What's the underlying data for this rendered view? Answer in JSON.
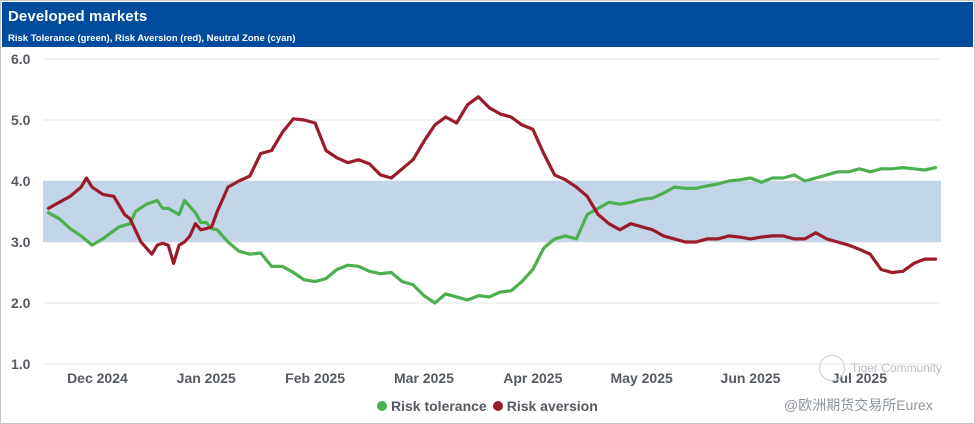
{
  "header": {
    "title": "Developed markets",
    "subtitle": "Risk Tolerance (green), Risk Aversion (red), Neutral Zone (cyan)"
  },
  "colors": {
    "header_bg": "#004b9b",
    "risk_tolerance": "#4caf50",
    "risk_aversion": "#9b1b2a",
    "neutral_zone": "#c2d6e8"
  },
  "watermark": {
    "community": "Tiger Community",
    "source": "@欧洲期货交易所Eurex"
  },
  "chart_data": {
    "type": "line",
    "title": "Developed markets",
    "subtitle": "Risk Tolerance (green), Risk Aversion (red), Neutral Zone (cyan)",
    "xlabel": "",
    "ylabel": "",
    "ylim": [
      1.0,
      6.0
    ],
    "y_ticks": [
      "1.0",
      "2.0",
      "3.0",
      "4.0",
      "5.0",
      "6.0"
    ],
    "x_range": [
      0,
      8.25
    ],
    "x_ticks": [
      {
        "label": "Dec 2024",
        "x": 0.5
      },
      {
        "label": "Jan 2025",
        "x": 1.5
      },
      {
        "label": "Feb 2025",
        "x": 2.5
      },
      {
        "label": "Mar 2025",
        "x": 3.5
      },
      {
        "label": "Apr 2025",
        "x": 4.5
      },
      {
        "label": "May 2025",
        "x": 5.5
      },
      {
        "label": "Jun 2025",
        "x": 6.5
      },
      {
        "label": "Jul 2025",
        "x": 7.5
      }
    ],
    "grid": true,
    "neutral_zone": [
      3.0,
      4.0
    ],
    "legend_position": "bottom-center",
    "series": [
      {
        "name": "Risk tolerance",
        "color": "#4caf50",
        "x": [
          0.05,
          0.15,
          0.25,
          0.35,
          0.45,
          0.55,
          0.6,
          0.7,
          0.8,
          0.85,
          0.95,
          1.05,
          1.1,
          1.15,
          1.25,
          1.3,
          1.4,
          1.45,
          1.5,
          1.55,
          1.6,
          1.7,
          1.8,
          1.9,
          2.0,
          2.1,
          2.2,
          2.3,
          2.4,
          2.5,
          2.6,
          2.7,
          2.8,
          2.9,
          3.0,
          3.1,
          3.2,
          3.3,
          3.4,
          3.5,
          3.6,
          3.7,
          3.8,
          3.9,
          4.0,
          4.1,
          4.2,
          4.3,
          4.4,
          4.5,
          4.6,
          4.7,
          4.8,
          4.9,
          5.0,
          5.1,
          5.2,
          5.3,
          5.4,
          5.5,
          5.6,
          5.7,
          5.8,
          5.9,
          6.0,
          6.1,
          6.2,
          6.3,
          6.4,
          6.5,
          6.6,
          6.7,
          6.8,
          6.9,
          7.0,
          7.1,
          7.2,
          7.3,
          7.4,
          7.5,
          7.6,
          7.7,
          7.8,
          7.9,
          8.0,
          8.1,
          8.2
        ],
        "values": [
          3.48,
          3.38,
          3.22,
          3.1,
          2.95,
          3.05,
          3.12,
          3.25,
          3.3,
          3.5,
          3.62,
          3.68,
          3.55,
          3.55,
          3.45,
          3.68,
          3.48,
          3.32,
          3.32,
          3.22,
          3.2,
          3.0,
          2.85,
          2.8,
          2.82,
          2.6,
          2.6,
          2.5,
          2.38,
          2.35,
          2.4,
          2.55,
          2.62,
          2.6,
          2.52,
          2.48,
          2.5,
          2.35,
          2.3,
          2.12,
          2.0,
          2.15,
          2.1,
          2.05,
          2.12,
          2.1,
          2.18,
          2.2,
          2.35,
          2.55,
          2.9,
          3.05,
          3.1,
          3.05,
          3.45,
          3.55,
          3.65,
          3.62,
          3.65,
          3.7,
          3.72,
          3.8,
          3.9,
          3.88,
          3.88,
          3.92,
          3.95,
          4.0,
          4.02,
          4.05,
          3.98,
          4.05,
          4.05,
          4.1,
          4.0,
          4.05,
          4.1,
          4.15,
          4.15,
          4.2,
          4.15,
          4.2,
          4.2,
          4.22,
          4.2,
          4.18,
          4.22
        ]
      },
      {
        "name": "Risk aversion",
        "color": "#9b1b2a",
        "x": [
          0.05,
          0.15,
          0.25,
          0.35,
          0.4,
          0.45,
          0.55,
          0.65,
          0.75,
          0.8,
          0.9,
          0.95,
          1.0,
          1.05,
          1.1,
          1.15,
          1.2,
          1.25,
          1.3,
          1.35,
          1.4,
          1.45,
          1.5,
          1.55,
          1.6,
          1.7,
          1.8,
          1.9,
          2.0,
          2.1,
          2.2,
          2.3,
          2.4,
          2.5,
          2.6,
          2.7,
          2.8,
          2.9,
          3.0,
          3.1,
          3.2,
          3.3,
          3.4,
          3.5,
          3.6,
          3.7,
          3.8,
          3.9,
          4.0,
          4.1,
          4.2,
          4.3,
          4.4,
          4.5,
          4.6,
          4.7,
          4.8,
          4.9,
          5.0,
          5.1,
          5.2,
          5.3,
          5.4,
          5.5,
          5.6,
          5.7,
          5.8,
          5.9,
          6.0,
          6.1,
          6.2,
          6.3,
          6.4,
          6.5,
          6.6,
          6.7,
          6.8,
          6.9,
          7.0,
          7.1,
          7.2,
          7.3,
          7.4,
          7.5,
          7.6,
          7.7,
          7.8,
          7.9,
          8.0,
          8.1,
          8.2
        ],
        "values": [
          3.55,
          3.65,
          3.75,
          3.9,
          4.05,
          3.9,
          3.78,
          3.75,
          3.45,
          3.38,
          3.0,
          2.9,
          2.8,
          2.95,
          2.98,
          2.95,
          2.65,
          2.95,
          3.0,
          3.1,
          3.3,
          3.2,
          3.22,
          3.25,
          3.5,
          3.9,
          4.0,
          4.08,
          4.45,
          4.5,
          4.8,
          5.02,
          5.0,
          4.95,
          4.5,
          4.38,
          4.3,
          4.35,
          4.28,
          4.1,
          4.05,
          4.2,
          4.35,
          4.65,
          4.92,
          5.05,
          4.95,
          5.25,
          5.38,
          5.2,
          5.1,
          5.05,
          4.92,
          4.85,
          4.45,
          4.1,
          4.02,
          3.9,
          3.75,
          3.45,
          3.3,
          3.2,
          3.3,
          3.25,
          3.2,
          3.1,
          3.05,
          3.0,
          3.0,
          3.05,
          3.05,
          3.1,
          3.08,
          3.05,
          3.08,
          3.1,
          3.1,
          3.05,
          3.05,
          3.15,
          3.05,
          3.0,
          2.95,
          2.88,
          2.8,
          2.55,
          2.5,
          2.52,
          2.65,
          2.72,
          2.72
        ]
      }
    ]
  }
}
